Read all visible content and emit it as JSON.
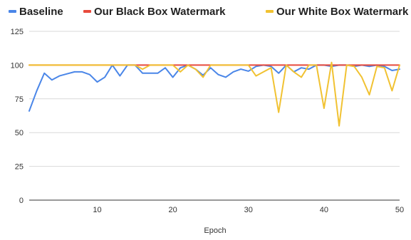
{
  "chart_data": {
    "type": "line",
    "title": "",
    "xlabel": "Epoch",
    "ylabel": "",
    "xlim": [
      1,
      50
    ],
    "ylim": [
      0,
      125
    ],
    "xticks": [
      10,
      20,
      30,
      40,
      50
    ],
    "yticks": [
      0,
      25,
      50,
      75,
      100,
      125
    ],
    "grid": "horizontal",
    "legend_position": "top",
    "x": [
      1,
      2,
      3,
      4,
      5,
      6,
      7,
      8,
      9,
      10,
      11,
      12,
      13,
      14,
      15,
      16,
      17,
      18,
      19,
      20,
      21,
      22,
      23,
      24,
      25,
      26,
      27,
      28,
      29,
      30,
      31,
      32,
      33,
      34,
      35,
      36,
      37,
      38,
      39,
      40,
      41,
      42,
      43,
      44,
      45,
      46,
      47,
      48,
      49,
      50
    ],
    "series": [
      {
        "name": "Baseline",
        "color": "#4a86e8",
        "values": [
          66,
          81,
          94,
          89,
          92,
          93.5,
          95,
          95,
          93,
          87.5,
          91,
          100,
          92,
          100,
          100,
          94,
          94,
          94,
          98,
          91,
          98,
          100,
          97,
          92.5,
          98,
          93,
          91,
          95,
          97,
          95.5,
          99,
          100,
          99,
          94,
          100,
          95,
          98,
          97,
          100,
          100,
          99,
          100,
          100,
          99,
          100,
          99,
          100,
          99,
          96,
          97
        ]
      },
      {
        "name": "Our Black Box Watermark",
        "color": "#e84a3c",
        "values": [
          100,
          100,
          100,
          100,
          100,
          100,
          100,
          100,
          100,
          100,
          100,
          100,
          100,
          100,
          100,
          100,
          100,
          100,
          100,
          100,
          100,
          100,
          100,
          100,
          100,
          100,
          100,
          100,
          100,
          100,
          100,
          100,
          100,
          100,
          100,
          100,
          100,
          100,
          100,
          100,
          100,
          100,
          100,
          100,
          100,
          100,
          100,
          100,
          100,
          100
        ]
      },
      {
        "name": "Our White Box Watermark",
        "color": "#f1c232",
        "values": [
          100,
          100,
          100,
          100,
          100,
          100,
          100,
          100,
          100,
          100,
          100,
          100,
          100,
          100,
          100,
          97,
          100,
          100,
          100,
          100,
          95,
          100,
          97,
          91,
          100,
          100,
          100,
          100,
          100,
          100,
          92,
          95,
          98,
          65,
          100,
          95,
          91,
          100,
          100,
          68,
          102,
          55,
          100,
          99,
          91,
          78,
          99,
          98,
          81,
          100
        ]
      }
    ]
  }
}
